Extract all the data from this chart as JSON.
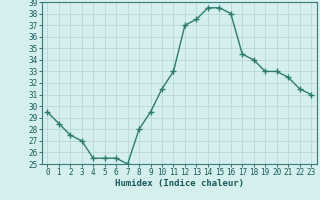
{
  "x": [
    0,
    1,
    2,
    3,
    4,
    5,
    6,
    7,
    8,
    9,
    10,
    11,
    12,
    13,
    14,
    15,
    16,
    17,
    18,
    19,
    20,
    21,
    22,
    23
  ],
  "y": [
    29.5,
    28.5,
    27.5,
    27.0,
    25.5,
    25.5,
    25.5,
    25.0,
    28.0,
    29.5,
    31.5,
    33.0,
    37.0,
    37.5,
    38.5,
    38.5,
    38.0,
    34.5,
    34.0,
    33.0,
    33.0,
    32.5,
    31.5,
    31.0
  ],
  "line_color": "#2d7d6e",
  "marker": "+",
  "marker_size": 4.0,
  "bg_color": "#d5eeee",
  "grid_color": "#b8d8d8",
  "xlabel": "Humidex (Indice chaleur)",
  "xlim": [
    -0.5,
    23.5
  ],
  "ylim": [
    25,
    39
  ],
  "yticks": [
    25,
    26,
    27,
    28,
    29,
    30,
    31,
    32,
    33,
    34,
    35,
    36,
    37,
    38,
    39
  ],
  "xticks": [
    0,
    1,
    2,
    3,
    4,
    5,
    6,
    7,
    8,
    9,
    10,
    11,
    12,
    13,
    14,
    15,
    16,
    17,
    18,
    19,
    20,
    21,
    22,
    23
  ],
  "tick_fontsize": 5.5,
  "xlabel_fontsize": 6.5,
  "tick_color": "#1a5a5a",
  "spine_color": "#3a7a7a",
  "linewidth": 1.0,
  "marker_color": "#2d7d6e"
}
